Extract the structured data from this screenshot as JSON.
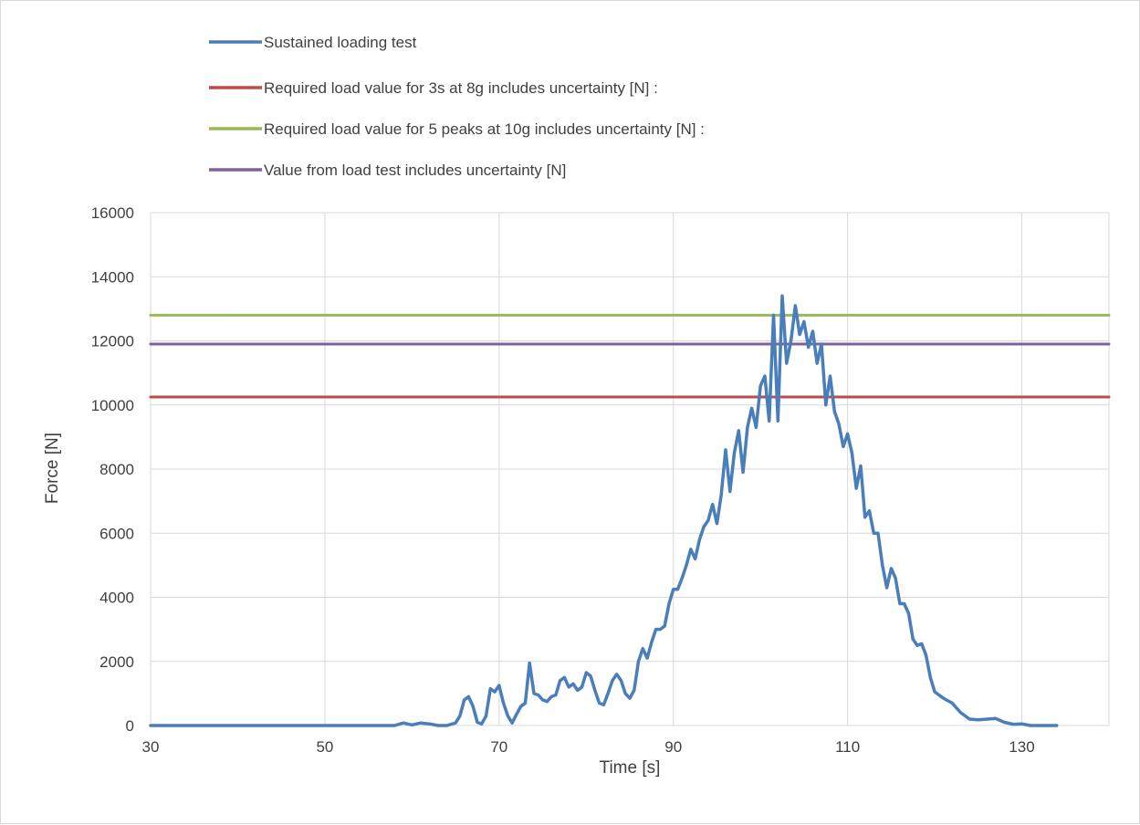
{
  "chart_data": {
    "type": "line",
    "xlabel": "Time [s]",
    "ylabel": "Force [N]",
    "xlim": [
      30,
      140
    ],
    "ylim": [
      0,
      16000
    ],
    "x_ticks": [
      30,
      50,
      70,
      90,
      110,
      130
    ],
    "y_ticks": [
      0,
      2000,
      4000,
      6000,
      8000,
      10000,
      12000,
      14000,
      16000
    ],
    "grid": true,
    "legend_position": "top",
    "series": [
      {
        "name": "Sustained loading test",
        "color": "#4a7ebb",
        "points": [
          [
            30,
            0
          ],
          [
            40,
            0
          ],
          [
            50,
            0
          ],
          [
            58,
            0
          ],
          [
            59,
            80
          ],
          [
            60,
            20
          ],
          [
            61,
            80
          ],
          [
            62,
            50
          ],
          [
            63,
            0
          ],
          [
            64,
            0
          ],
          [
            65,
            80
          ],
          [
            65.5,
            300
          ],
          [
            66,
            800
          ],
          [
            66.5,
            900
          ],
          [
            67,
            600
          ],
          [
            67.5,
            100
          ],
          [
            68,
            50
          ],
          [
            68.5,
            300
          ],
          [
            69,
            1150
          ],
          [
            69.5,
            1050
          ],
          [
            70,
            1250
          ],
          [
            70.5,
            700
          ],
          [
            71,
            300
          ],
          [
            71.5,
            80
          ],
          [
            72,
            350
          ],
          [
            72.5,
            600
          ],
          [
            73,
            700
          ],
          [
            73.5,
            1950
          ],
          [
            74,
            1000
          ],
          [
            74.5,
            950
          ],
          [
            75,
            800
          ],
          [
            75.5,
            750
          ],
          [
            76,
            900
          ],
          [
            76.5,
            950
          ],
          [
            77,
            1400
          ],
          [
            77.5,
            1500
          ],
          [
            78,
            1200
          ],
          [
            78.5,
            1300
          ],
          [
            79,
            1100
          ],
          [
            79.5,
            1200
          ],
          [
            80,
            1650
          ],
          [
            80.5,
            1550
          ],
          [
            81,
            1100
          ],
          [
            81.5,
            700
          ],
          [
            82,
            650
          ],
          [
            82.5,
            1000
          ],
          [
            83,
            1400
          ],
          [
            83.5,
            1600
          ],
          [
            84,
            1400
          ],
          [
            84.5,
            1000
          ],
          [
            85,
            850
          ],
          [
            85.5,
            1100
          ],
          [
            86,
            2000
          ],
          [
            86.5,
            2400
          ],
          [
            87,
            2100
          ],
          [
            87.5,
            2600
          ],
          [
            88,
            3000
          ],
          [
            88.5,
            3000
          ],
          [
            89,
            3100
          ],
          [
            89.5,
            3800
          ],
          [
            90,
            4250
          ],
          [
            90.5,
            4250
          ],
          [
            91,
            4600
          ],
          [
            91.5,
            5000
          ],
          [
            92,
            5500
          ],
          [
            92.5,
            5200
          ],
          [
            93,
            5800
          ],
          [
            93.5,
            6200
          ],
          [
            94,
            6400
          ],
          [
            94.5,
            6900
          ],
          [
            95,
            6300
          ],
          [
            95.5,
            7200
          ],
          [
            96,
            8600
          ],
          [
            96.5,
            7300
          ],
          [
            97,
            8500
          ],
          [
            97.5,
            9200
          ],
          [
            98,
            7900
          ],
          [
            98.5,
            9300
          ],
          [
            99,
            9900
          ],
          [
            99.5,
            9300
          ],
          [
            100,
            10600
          ],
          [
            100.5,
            10900
          ],
          [
            101,
            9500
          ],
          [
            101.5,
            12800
          ],
          [
            102,
            9500
          ],
          [
            102.5,
            13400
          ],
          [
            103,
            11300
          ],
          [
            103.5,
            12000
          ],
          [
            104,
            13100
          ],
          [
            104.5,
            12200
          ],
          [
            105,
            12600
          ],
          [
            105.5,
            11800
          ],
          [
            106,
            12300
          ],
          [
            106.5,
            11300
          ],
          [
            107,
            11900
          ],
          [
            107.5,
            10000
          ],
          [
            108,
            10900
          ],
          [
            108.5,
            9800
          ],
          [
            109,
            9400
          ],
          [
            109.5,
            8700
          ],
          [
            110,
            9100
          ],
          [
            110.5,
            8500
          ],
          [
            111,
            7400
          ],
          [
            111.5,
            8100
          ],
          [
            112,
            6500
          ],
          [
            112.5,
            6700
          ],
          [
            113,
            6000
          ],
          [
            113.5,
            6000
          ],
          [
            114,
            5000
          ],
          [
            114.5,
            4300
          ],
          [
            115,
            4900
          ],
          [
            115.5,
            4600
          ],
          [
            116,
            3800
          ],
          [
            116.5,
            3800
          ],
          [
            117,
            3500
          ],
          [
            117.5,
            2700
          ],
          [
            118,
            2500
          ],
          [
            118.5,
            2550
          ],
          [
            119,
            2200
          ],
          [
            119.5,
            1500
          ],
          [
            120,
            1050
          ],
          [
            121,
            850
          ],
          [
            122,
            700
          ],
          [
            123,
            400
          ],
          [
            124,
            200
          ],
          [
            125,
            180
          ],
          [
            126,
            200
          ],
          [
            127,
            220
          ],
          [
            128,
            100
          ],
          [
            129,
            40
          ],
          [
            130,
            50
          ],
          [
            131,
            0
          ],
          [
            134,
            0
          ]
        ]
      },
      {
        "name": "Required load value for 3s at 8g includes uncertainty [N] :",
        "color": "#be4b48",
        "points": [
          [
            30,
            10250
          ],
          [
            140,
            10250
          ]
        ]
      },
      {
        "name": "Required load value for 5 peaks at 10g includes uncertainty [N] :",
        "color": "#98b954",
        "points": [
          [
            30,
            12800
          ],
          [
            140,
            12800
          ]
        ]
      },
      {
        "name": "Value from load test includes uncertainty [N]",
        "color": "#7d60a0",
        "points": [
          [
            30,
            11900
          ],
          [
            140,
            11900
          ]
        ]
      }
    ]
  }
}
